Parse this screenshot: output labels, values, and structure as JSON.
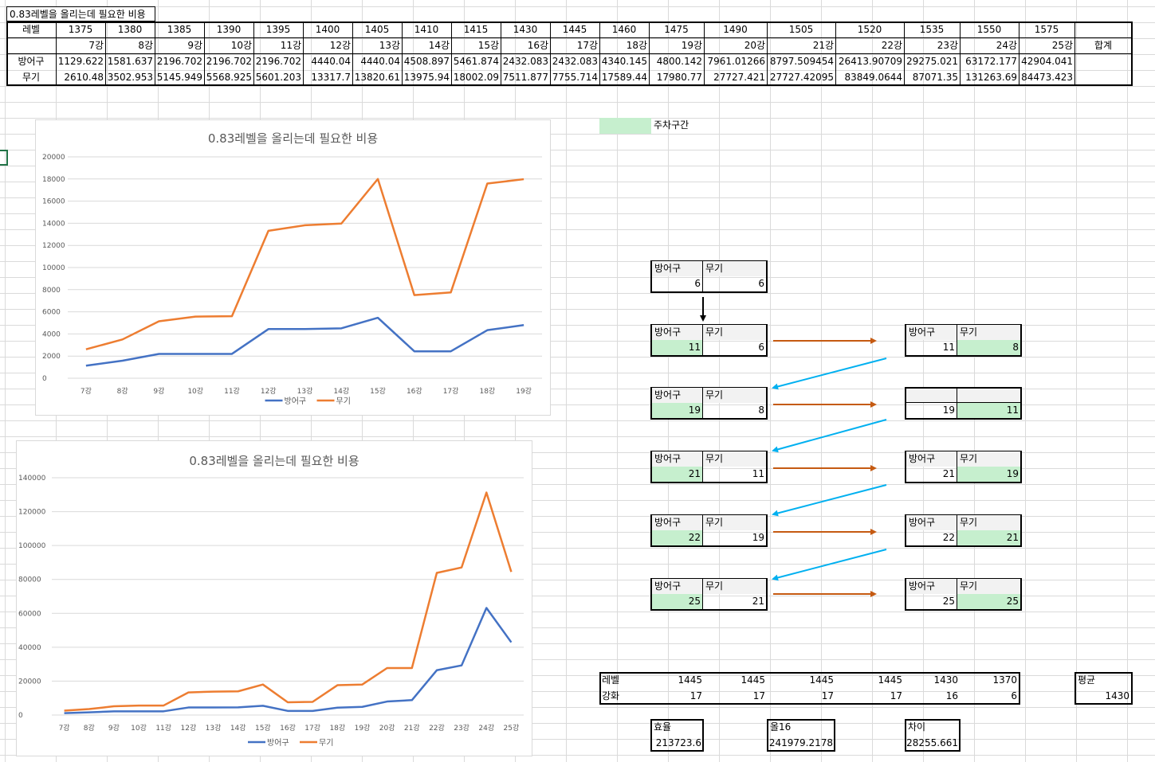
{
  "sheet": {
    "title": "0.83레벨을 올리는데 필요한 비용",
    "row_labels": [
      "레벨",
      "방어구",
      "무기"
    ],
    "levels": [
      "1375",
      "1380",
      "1385",
      "1390",
      "1395",
      "1400",
      "1405",
      "1410",
      "1415",
      "1430",
      "1445",
      "1460",
      "1475",
      "1490",
      "1505",
      "1520",
      "1535",
      "1550",
      "1575"
    ],
    "enhance": [
      "7강",
      "8강",
      "9강",
      "10강",
      "11강",
      "12강",
      "13강",
      "14강",
      "15강",
      "16강",
      "17강",
      "18강",
      "19강",
      "20강",
      "21강",
      "22강",
      "23강",
      "24강",
      "25강"
    ],
    "total_label": "합계",
    "armor": [
      "1129.622",
      "1581.637",
      "2196.702",
      "2196.702",
      "2196.702",
      "4440.04",
      "4440.04",
      "4508.897",
      "5461.874",
      "2432.083",
      "2432.083",
      "4340.145",
      "4800.142",
      "7961.01266",
      "8797.509454",
      "26413.90709",
      "29275.021",
      "63172.177",
      "42904.041"
    ],
    "weapon": [
      "2610.48",
      "3502.953",
      "5145.949",
      "5568.925",
      "5601.203",
      "13317.7",
      "13820.61",
      "13975.94",
      "18002.09",
      "7511.877",
      "7755.714",
      "17589.44",
      "17980.77",
      "27727.421",
      "27727.42095",
      "83849.0644",
      "87071.35",
      "131263.69",
      "84473.423"
    ]
  },
  "legend_note": "주차구간",
  "flow": {
    "col_armor": "방어구",
    "col_weapon": "무기",
    "left": [
      {
        "armor": "6",
        "weapon": "6"
      },
      {
        "armor": "11",
        "weapon": "6"
      },
      {
        "armor": "19",
        "weapon": "8"
      },
      {
        "armor": "21",
        "weapon": "11"
      },
      {
        "armor": "22",
        "weapon": "19"
      },
      {
        "armor": "25",
        "weapon": "21"
      }
    ],
    "right": [
      {
        "armor": "11",
        "weapon": "8",
        "header": true
      },
      {
        "armor": "19",
        "weapon": "11",
        "header": false
      },
      {
        "armor": "21",
        "weapon": "19",
        "header": true
      },
      {
        "armor": "22",
        "weapon": "21",
        "header": true
      },
      {
        "armor": "25",
        "weapon": "25",
        "header": true
      }
    ]
  },
  "summary": {
    "label_level": "레벨",
    "label_enh": "강화",
    "levels": [
      "1445",
      "1445",
      "1445",
      "1445",
      "1430",
      "1370"
    ],
    "enh": [
      "17",
      "17",
      "17",
      "17",
      "16",
      "6"
    ],
    "avg_label": "평균",
    "avg_value": "1430",
    "eff_label": "효율",
    "eff_value": "213723.6",
    "all16_label": "올16",
    "all16_value": "241979.2178",
    "diff_label": "차이",
    "diff_value": "28255.661"
  },
  "colors": {
    "armor": "#4472c4",
    "weapon": "#ed7d31",
    "green": "#c6efce",
    "arrow_brown": "#c55a11",
    "arrow_blue": "#00b0f0"
  },
  "chart_data": [
    {
      "type": "line",
      "title": "0.83레벨을 올리는데 필요한 비용",
      "categories": [
        "7강",
        "8강",
        "9강",
        "10강",
        "11강",
        "12강",
        "13강",
        "14강",
        "15강",
        "16강",
        "17강",
        "18강",
        "19강"
      ],
      "series": [
        {
          "name": "방어구",
          "values": [
            1129.622,
            1581.637,
            2196.702,
            2196.702,
            2196.702,
            4440.04,
            4440.04,
            4508.897,
            5461.874,
            2432.083,
            2432.083,
            4340.145,
            4800.142
          ]
        },
        {
          "name": "무기",
          "values": [
            2610.48,
            3502.953,
            5145.949,
            5568.925,
            5601.203,
            13317.7,
            13820.61,
            13975.94,
            18002.09,
            7511.877,
            7755.714,
            17589.44,
            17980.77
          ]
        }
      ],
      "ylim": [
        0,
        20000
      ],
      "yticks": [
        "0",
        "2000",
        "4000",
        "6000",
        "8000",
        "10000",
        "12000",
        "14000",
        "16000",
        "18000",
        "20000"
      ],
      "legend": "bottom"
    },
    {
      "type": "line",
      "title": "0.83레벨을 올리는데 필요한 비용",
      "categories": [
        "7강",
        "8강",
        "9강",
        "10강",
        "11강",
        "12강",
        "13강",
        "14강",
        "15강",
        "16강",
        "17강",
        "18강",
        "19강",
        "20강",
        "21강",
        "22강",
        "23강",
        "24강",
        "25강"
      ],
      "series": [
        {
          "name": "방어구",
          "values": [
            1129.622,
            1581.637,
            2196.702,
            2196.702,
            2196.702,
            4440.04,
            4440.04,
            4508.897,
            5461.874,
            2432.083,
            2432.083,
            4340.145,
            4800.142,
            7961.01266,
            8797.509454,
            26413.90709,
            29275.021,
            63172.177,
            42904.041
          ]
        },
        {
          "name": "무기",
          "values": [
            2610.48,
            3502.953,
            5145.949,
            5568.925,
            5601.203,
            13317.7,
            13820.61,
            13975.94,
            18002.09,
            7511.877,
            7755.714,
            17589.44,
            17980.77,
            27727.421,
            27727.42095,
            83849.0644,
            87071.35,
            131263.69,
            84473.423
          ]
        }
      ],
      "ylim": [
        0,
        140000
      ],
      "yticks": [
        "0",
        "20000",
        "40000",
        "60000",
        "80000",
        "100000",
        "120000",
        "140000"
      ],
      "legend": "bottom"
    }
  ]
}
